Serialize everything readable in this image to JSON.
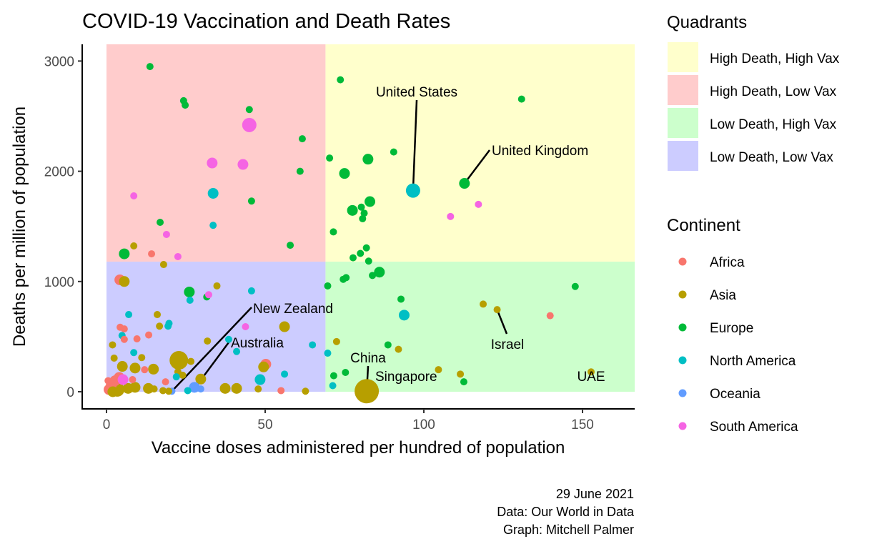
{
  "chart_data": {
    "type": "scatter",
    "title": "COVID-19 Vaccination and Death Rates",
    "xlabel": "Vaccine doses administered per hundred of population",
    "ylabel": "Deaths per million of population",
    "xlim": [
      -8,
      166
    ],
    "ylim": [
      -150,
      3150
    ],
    "x_ticks": [
      0,
      50,
      100,
      150
    ],
    "y_ticks": [
      0,
      1000,
      2000,
      3000
    ],
    "grid": false,
    "quadrant_split": {
      "x": 69,
      "y": 1180
    },
    "quadrants": [
      {
        "name": "High Death, High Vax",
        "color": "#ffffcc"
      },
      {
        "name": "High Death, Low Vax",
        "color": "#ffcccc"
      },
      {
        "name": "Low Death, High Vax",
        "color": "#ccffcc"
      },
      {
        "name": "Low Death, Low Vax",
        "color": "#ccccff"
      }
    ],
    "legend_quadrants_title": "Quadrants",
    "legend_continent_title": "Continent",
    "legend_placement": "right",
    "continents": [
      {
        "name": "Africa",
        "color": "#f8766d"
      },
      {
        "name": "Asia",
        "color": "#b79f00"
      },
      {
        "name": "Europe",
        "color": "#00ba38"
      },
      {
        "name": "North America",
        "color": "#00bfc4"
      },
      {
        "name": "Oceania",
        "color": "#619cff"
      },
      {
        "name": "South America",
        "color": "#f564e3"
      }
    ],
    "size_note": "marker size reflects population (relative scale 1-5)",
    "points": [
      {
        "x": 13.7,
        "y": 2950,
        "c": "Europe",
        "s": 1
      },
      {
        "x": 24.3,
        "y": 2640,
        "c": "Europe",
        "s": 1
      },
      {
        "x": 24.8,
        "y": 2600,
        "c": "Europe",
        "s": 1
      },
      {
        "x": 45.0,
        "y": 2560,
        "c": "Europe",
        "s": 1
      },
      {
        "x": 45.0,
        "y": 2420,
        "c": "South America",
        "s": 3
      },
      {
        "x": 61.7,
        "y": 2295,
        "c": "Europe",
        "s": 1
      },
      {
        "x": 33.3,
        "y": 2075,
        "c": "South America",
        "s": 2
      },
      {
        "x": 43.0,
        "y": 2062,
        "c": "South America",
        "s": 2
      },
      {
        "x": 61.0,
        "y": 2000,
        "c": "Europe",
        "s": 1
      },
      {
        "x": 8.6,
        "y": 1777,
        "c": "South America",
        "s": 1
      },
      {
        "x": 33.6,
        "y": 1800,
        "c": "North America",
        "s": 2
      },
      {
        "x": 45.7,
        "y": 1730,
        "c": "Europe",
        "s": 1
      },
      {
        "x": 16.9,
        "y": 1537,
        "c": "Europe",
        "s": 1
      },
      {
        "x": 33.6,
        "y": 1510,
        "c": "North America",
        "s": 1
      },
      {
        "x": 18.9,
        "y": 1427,
        "c": "South America",
        "s": 1
      },
      {
        "x": 57.9,
        "y": 1329,
        "c": "Europe",
        "s": 1
      },
      {
        "x": 8.6,
        "y": 1323,
        "c": "Asia",
        "s": 1
      },
      {
        "x": 5.6,
        "y": 1251,
        "c": "Europe",
        "s": 2
      },
      {
        "x": 14.2,
        "y": 1251,
        "c": "Africa",
        "s": 1
      },
      {
        "x": 22.5,
        "y": 1226,
        "c": "South America",
        "s": 1
      },
      {
        "x": 18.0,
        "y": 1154,
        "c": "Asia",
        "s": 1
      },
      {
        "x": 73.7,
        "y": 2830,
        "c": "Europe",
        "s": 1
      },
      {
        "x": 130.8,
        "y": 2655,
        "c": "Europe",
        "s": 1
      },
      {
        "x": 90.5,
        "y": 2175,
        "c": "Europe",
        "s": 1
      },
      {
        "x": 70.3,
        "y": 2120,
        "c": "Europe",
        "s": 1
      },
      {
        "x": 82.4,
        "y": 2110,
        "c": "Europe",
        "s": 2
      },
      {
        "x": 75.0,
        "y": 1980,
        "c": "Europe",
        "s": 2
      },
      {
        "x": 96.6,
        "y": 1825,
        "c": "North America",
        "s": 3
      },
      {
        "x": 112.8,
        "y": 1890,
        "c": "Europe",
        "s": 2
      },
      {
        "x": 117.2,
        "y": 1700,
        "c": "South America",
        "s": 1
      },
      {
        "x": 108.4,
        "y": 1590,
        "c": "South America",
        "s": 1
      },
      {
        "x": 83.0,
        "y": 1725,
        "c": "Europe",
        "s": 2
      },
      {
        "x": 80.3,
        "y": 1675,
        "c": "Europe",
        "s": 1
      },
      {
        "x": 77.5,
        "y": 1645,
        "c": "Europe",
        "s": 2
      },
      {
        "x": 81.2,
        "y": 1620,
        "c": "Europe",
        "s": 1
      },
      {
        "x": 80.7,
        "y": 1570,
        "c": "Europe",
        "s": 1
      },
      {
        "x": 71.5,
        "y": 1450,
        "c": "Europe",
        "s": 1
      },
      {
        "x": 81.9,
        "y": 1305,
        "c": "Europe",
        "s": 1
      },
      {
        "x": 80.0,
        "y": 1255,
        "c": "Europe",
        "s": 1
      },
      {
        "x": 77.7,
        "y": 1215,
        "c": "Europe",
        "s": 1
      },
      {
        "x": 82.6,
        "y": 1185,
        "c": "Europe",
        "s": 1
      },
      {
        "x": 86.0,
        "y": 1085,
        "c": "Europe",
        "s": 2
      },
      {
        "x": 83.8,
        "y": 1055,
        "c": "Europe",
        "s": 1
      },
      {
        "x": 75.5,
        "y": 1035,
        "c": "Europe",
        "s": 1
      },
      {
        "x": 74.6,
        "y": 1020,
        "c": "Europe",
        "s": 1
      },
      {
        "x": 69.7,
        "y": 960,
        "c": "Europe",
        "s": 1
      },
      {
        "x": 92.8,
        "y": 840,
        "c": "Europe",
        "s": 1
      },
      {
        "x": 93.8,
        "y": 695,
        "c": "North America",
        "s": 2
      },
      {
        "x": 147.7,
        "y": 955,
        "c": "Europe",
        "s": 1
      },
      {
        "x": 118.7,
        "y": 795,
        "c": "Asia",
        "s": 1
      },
      {
        "x": 123.1,
        "y": 745,
        "c": "Asia",
        "s": 1
      },
      {
        "x": 139.8,
        "y": 690,
        "c": "Africa",
        "s": 1
      },
      {
        "x": 72.5,
        "y": 455,
        "c": "Asia",
        "s": 1
      },
      {
        "x": 88.7,
        "y": 425,
        "c": "Europe",
        "s": 1
      },
      {
        "x": 92.0,
        "y": 385,
        "c": "Asia",
        "s": 1
      },
      {
        "x": 69.7,
        "y": 350,
        "c": "North America",
        "s": 1
      },
      {
        "x": 104.6,
        "y": 200,
        "c": "Asia",
        "s": 1
      },
      {
        "x": 111.5,
        "y": 160,
        "c": "Asia",
        "s": 1
      },
      {
        "x": 112.6,
        "y": 90,
        "c": "Europe",
        "s": 1
      },
      {
        "x": 75.3,
        "y": 175,
        "c": "Europe",
        "s": 1
      },
      {
        "x": 71.6,
        "y": 145,
        "c": "Europe",
        "s": 1
      },
      {
        "x": 71.3,
        "y": 55,
        "c": "North America",
        "s": 1
      },
      {
        "x": 82.0,
        "y": 5,
        "c": "Asia",
        "s": 5
      },
      {
        "x": 152.7,
        "y": 180,
        "c": "Asia",
        "s": 1
      },
      {
        "x": 26.1,
        "y": 905,
        "c": "Europe",
        "s": 2
      },
      {
        "x": 26.3,
        "y": 830,
        "c": "North America",
        "s": 1
      },
      {
        "x": 31.6,
        "y": 860,
        "c": "Europe",
        "s": 1
      },
      {
        "x": 32.2,
        "y": 880,
        "c": "South America",
        "s": 1
      },
      {
        "x": 34.8,
        "y": 960,
        "c": "Asia",
        "s": 1
      },
      {
        "x": 45.7,
        "y": 915,
        "c": "North America",
        "s": 1
      },
      {
        "x": 4.2,
        "y": 1015,
        "c": "Africa",
        "s": 2
      },
      {
        "x": 5.6,
        "y": 1000,
        "c": "Asia",
        "s": 2
      },
      {
        "x": 7.0,
        "y": 700,
        "c": "North America",
        "s": 1
      },
      {
        "x": 16.0,
        "y": 700,
        "c": "Asia",
        "s": 1
      },
      {
        "x": 19.7,
        "y": 620,
        "c": "North America",
        "s": 1
      },
      {
        "x": 19.4,
        "y": 595,
        "c": "North America",
        "s": 1
      },
      {
        "x": 16.7,
        "y": 595,
        "c": "Asia",
        "s": 1
      },
      {
        "x": 4.3,
        "y": 585,
        "c": "Africa",
        "s": 1
      },
      {
        "x": 5.6,
        "y": 570,
        "c": "Africa",
        "s": 1
      },
      {
        "x": 4.9,
        "y": 510,
        "c": "North America",
        "s": 1
      },
      {
        "x": 5.6,
        "y": 475,
        "c": "Africa",
        "s": 1
      },
      {
        "x": 13.3,
        "y": 515,
        "c": "Africa",
        "s": 1
      },
      {
        "x": 9.6,
        "y": 480,
        "c": "Africa",
        "s": 1
      },
      {
        "x": 1.9,
        "y": 425,
        "c": "Asia",
        "s": 1
      },
      {
        "x": 8.6,
        "y": 355,
        "c": "North America",
        "s": 1
      },
      {
        "x": 2.4,
        "y": 305,
        "c": "Asia",
        "s": 1
      },
      {
        "x": 11.1,
        "y": 310,
        "c": "Asia",
        "s": 1
      },
      {
        "x": 5.0,
        "y": 230,
        "c": "Asia",
        "s": 2
      },
      {
        "x": 9.0,
        "y": 215,
        "c": "Asia",
        "s": 2
      },
      {
        "x": 14.8,
        "y": 205,
        "c": "Asia",
        "s": 2
      },
      {
        "x": 12.0,
        "y": 200,
        "c": "Africa",
        "s": 1
      },
      {
        "x": 22.8,
        "y": 285,
        "c": "Asia",
        "s": 4
      },
      {
        "x": 26.6,
        "y": 275,
        "c": "Asia",
        "s": 1
      },
      {
        "x": 22.5,
        "y": 180,
        "c": "Asia",
        "s": 1
      },
      {
        "x": 24.0,
        "y": 150,
        "c": "Asia",
        "s": 1
      },
      {
        "x": 18.6,
        "y": 90,
        "c": "Africa",
        "s": 1
      },
      {
        "x": 22.0,
        "y": 135,
        "c": "North America",
        "s": 1
      },
      {
        "x": 29.7,
        "y": 115,
        "c": "Asia",
        "s": 2
      },
      {
        "x": 31.8,
        "y": 460,
        "c": "Asia",
        "s": 1
      },
      {
        "x": 38.5,
        "y": 475,
        "c": "North America",
        "s": 1
      },
      {
        "x": 43.8,
        "y": 590,
        "c": "South America",
        "s": 1
      },
      {
        "x": 56.1,
        "y": 590,
        "c": "Asia",
        "s": 2
      },
      {
        "x": 64.9,
        "y": 425,
        "c": "North America",
        "s": 1
      },
      {
        "x": 41.0,
        "y": 365,
        "c": "North America",
        "s": 1
      },
      {
        "x": 50.2,
        "y": 250,
        "c": "Africa",
        "s": 2
      },
      {
        "x": 49.5,
        "y": 225,
        "c": "Asia",
        "s": 2
      },
      {
        "x": 56.1,
        "y": 160,
        "c": "North America",
        "s": 1
      },
      {
        "x": 48.4,
        "y": 110,
        "c": "North America",
        "s": 2
      },
      {
        "x": 47.8,
        "y": 25,
        "c": "Asia",
        "s": 1
      },
      {
        "x": 55.0,
        "y": 10,
        "c": "Africa",
        "s": 1
      },
      {
        "x": 62.7,
        "y": 5,
        "c": "Asia",
        "s": 1
      },
      {
        "x": 37.4,
        "y": 30,
        "c": "Asia",
        "s": 2
      },
      {
        "x": 41.0,
        "y": 30,
        "c": "Asia",
        "s": 2
      },
      {
        "x": 27.7,
        "y": 40,
        "c": "Oceania",
        "s": 2
      },
      {
        "x": 29.7,
        "y": 25,
        "c": "Oceania",
        "s": 1
      },
      {
        "x": 20.6,
        "y": 5,
        "c": "Oceania",
        "s": 1
      },
      {
        "x": 25.6,
        "y": 10,
        "c": "North America",
        "s": 1
      },
      {
        "x": 17.8,
        "y": 10,
        "c": "Asia",
        "s": 1
      },
      {
        "x": 19.6,
        "y": 5,
        "c": "Asia",
        "s": 1
      },
      {
        "x": 13.2,
        "y": 30,
        "c": "Asia",
        "s": 2
      },
      {
        "x": 15.0,
        "y": 25,
        "c": "Asia",
        "s": 1
      },
      {
        "x": 9.0,
        "y": 40,
        "c": "Asia",
        "s": 2
      },
      {
        "x": 6.8,
        "y": 30,
        "c": "Asia",
        "s": 2
      },
      {
        "x": 3.4,
        "y": 20,
        "c": "Asia",
        "s": 3
      },
      {
        "x": 1.5,
        "y": 60,
        "c": "Africa",
        "s": 2
      },
      {
        "x": 0.8,
        "y": 20,
        "c": "Africa",
        "s": 2
      },
      {
        "x": 2.7,
        "y": 100,
        "c": "Africa",
        "s": 2
      },
      {
        "x": 4.0,
        "y": 130,
        "c": "Africa",
        "s": 2
      },
      {
        "x": 5.2,
        "y": 110,
        "c": "South America",
        "s": 2
      },
      {
        "x": 8.2,
        "y": 110,
        "c": "Africa",
        "s": 1
      },
      {
        "x": 0.5,
        "y": 100,
        "c": "Africa",
        "s": 1
      },
      {
        "x": 2.0,
        "y": 0,
        "c": "Asia",
        "s": 2
      }
    ],
    "annotations": [
      {
        "label": "United States",
        "x": 96.6,
        "y": 1825,
        "lx": 94,
        "ly": 2700
      },
      {
        "label": "United Kingdom",
        "x": 112.8,
        "y": 1890,
        "lx": 121,
        "ly": 2190
      },
      {
        "label": "New Zealand",
        "x": 20.6,
        "y": 5,
        "lx": 46,
        "ly": 760
      },
      {
        "label": "Australia",
        "x": 28.0,
        "y": 40,
        "lx": 39,
        "ly": 445
      },
      {
        "label": "China",
        "x": 82.0,
        "y": 5,
        "lx": 82,
        "ly": 230
      },
      {
        "label": "Singapore",
        "x": 82.0,
        "y": 5,
        "lx": 85,
        "ly": 135
      },
      {
        "label": "Israel",
        "x": 123.1,
        "y": 745,
        "lx": 125,
        "ly": 465
      },
      {
        "label": "UAE",
        "x": 152.7,
        "y": 180,
        "lx": 153,
        "ly": 135
      }
    ]
  },
  "caption": {
    "line1": "29 June 2021",
    "line2": "Data: Our World in Data",
    "line3": "Graph: Mitchell Palmer"
  }
}
